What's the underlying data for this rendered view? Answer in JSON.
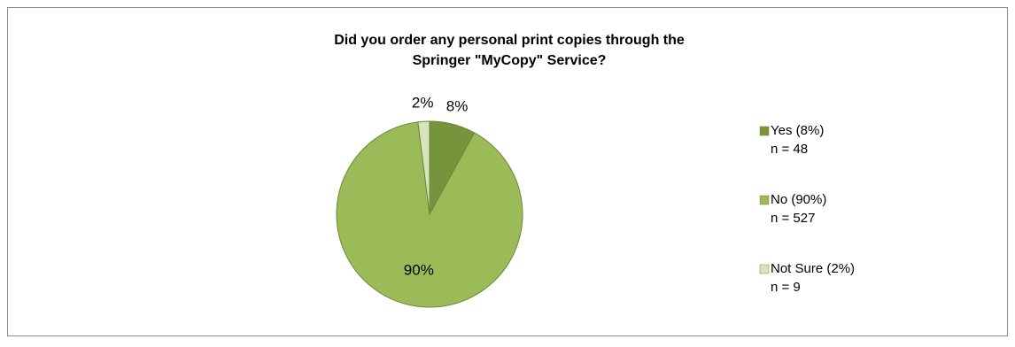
{
  "chart_data": {
    "type": "pie",
    "title": [
      "Did you order any personal print copies through the",
      "Springer \"MyCopy\" Service?"
    ],
    "categories": [
      "Yes (8%)",
      "No  (90%)",
      "Not Sure  (2%)"
    ],
    "count_labels": [
      "n = 48",
      "n = 527",
      "n = 9"
    ],
    "values": [
      8,
      90,
      2
    ],
    "value_labels": [
      "8%",
      "90%",
      "2%"
    ],
    "colors": [
      "#77933c",
      "#9bbb59",
      "#d7e4bd"
    ],
    "legend": "right"
  }
}
